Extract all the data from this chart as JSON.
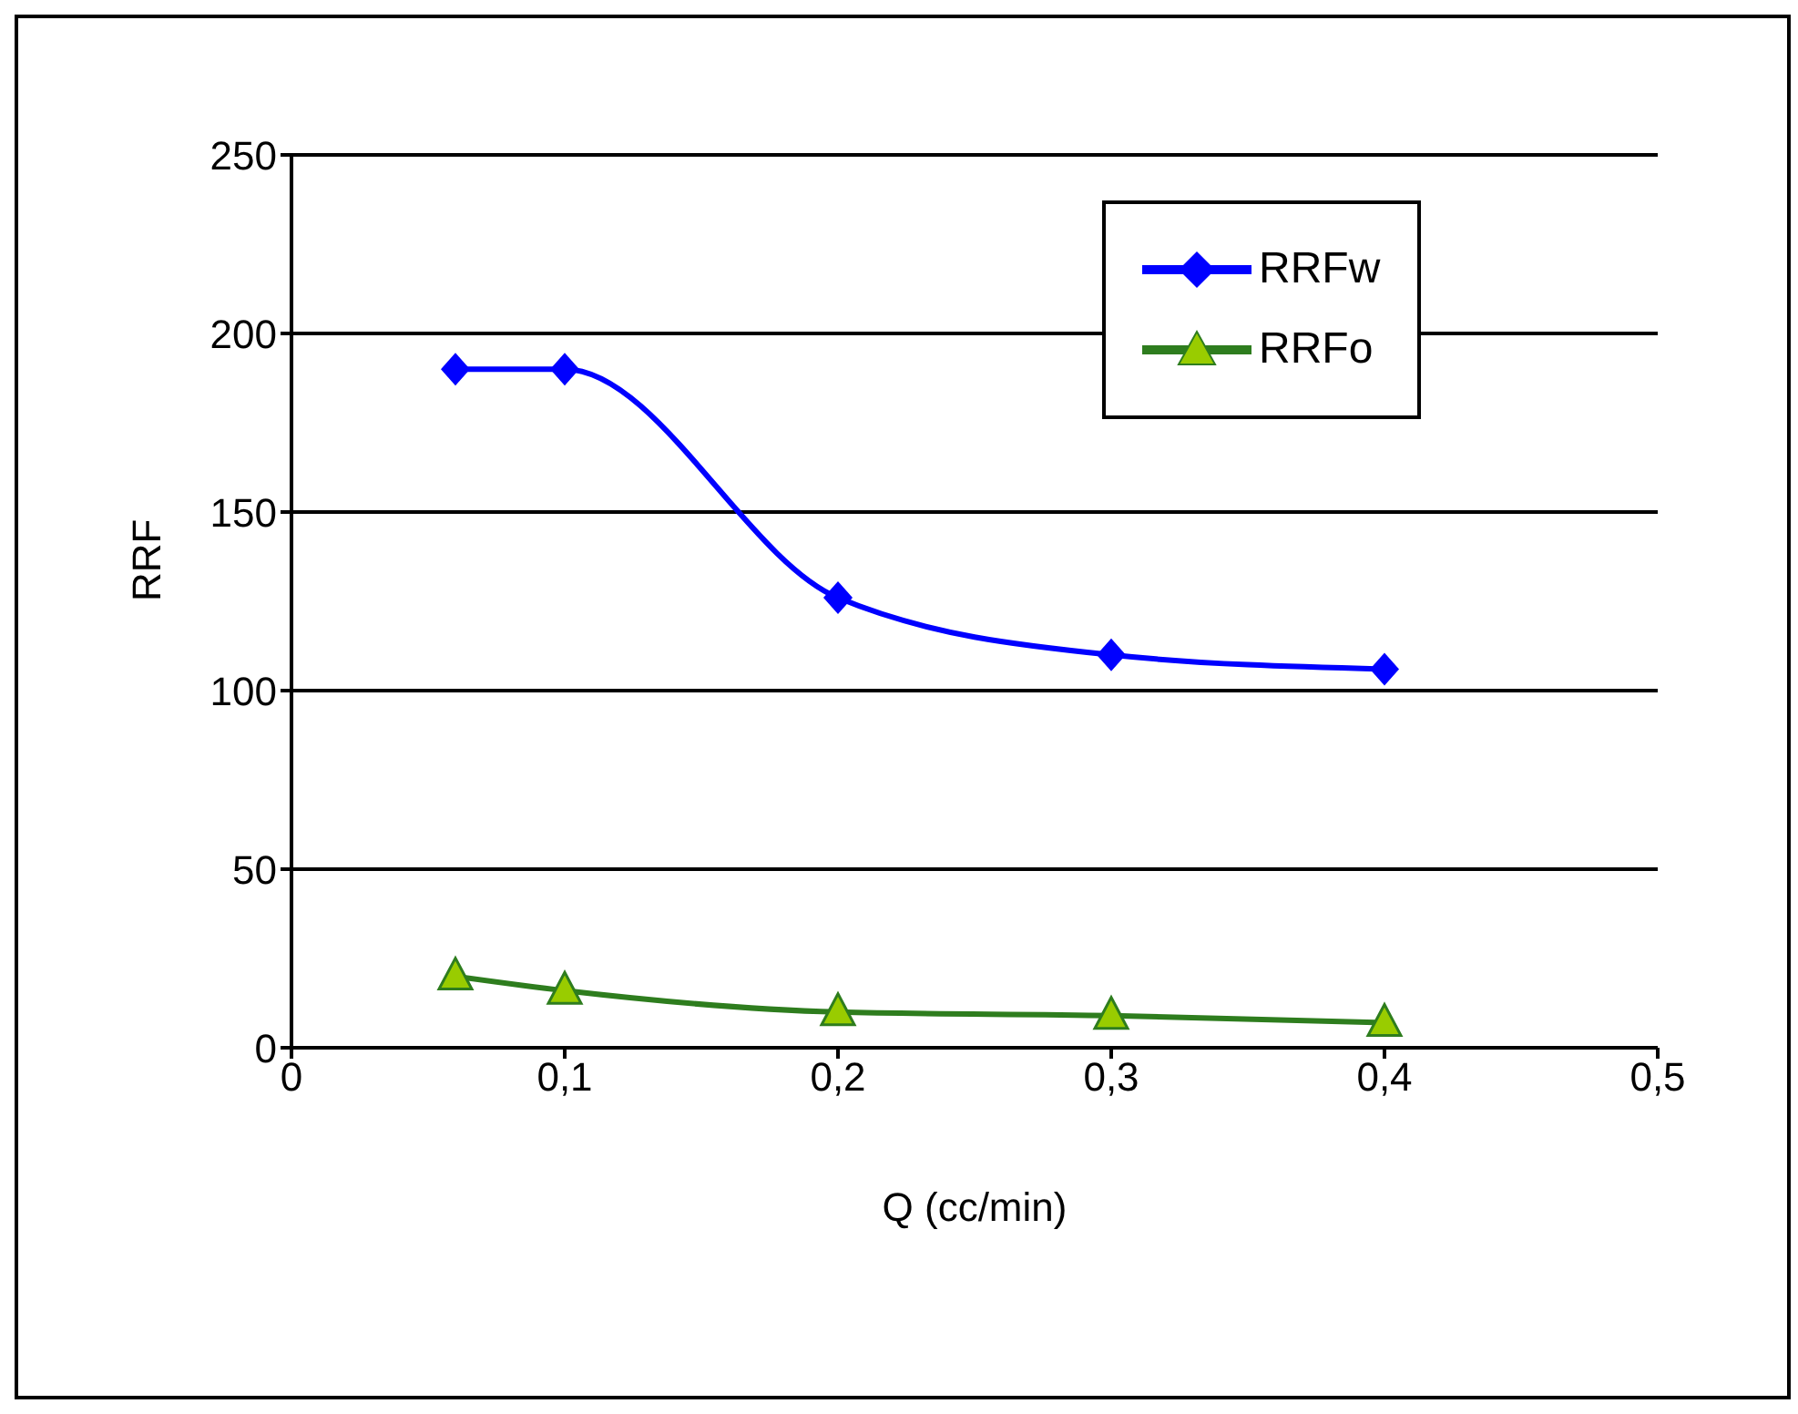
{
  "chart_data": {
    "type": "line",
    "xlabel": "Q (cc/min)",
    "ylabel": "RRF",
    "x": [
      0.06,
      0.1,
      0.2,
      0.3,
      0.4
    ],
    "series": [
      {
        "name": "RRFw",
        "color": "#0000ff",
        "values": [
          190,
          190,
          126,
          110,
          106
        ],
        "marker": "diamond"
      },
      {
        "name": "RRFo",
        "color": "#2e7d1e",
        "values": [
          20,
          16,
          10,
          9,
          7
        ],
        "marker": "triangle"
      }
    ],
    "xlim": [
      0,
      0.5
    ],
    "xticks": [
      0,
      {
        "value": 0.1,
        "label": "0,1"
      },
      {
        "value": 0.2,
        "label": "0,2"
      },
      {
        "value": 0.3,
        "label": "0,3"
      },
      {
        "value": 0.4,
        "label": "0,4"
      },
      {
        "value": 0.5,
        "label": "0,5"
      }
    ],
    "ylim": [
      0,
      250
    ],
    "yticks": [
      0,
      50,
      100,
      150,
      200,
      250
    ],
    "grid": "y",
    "legend": "top right",
    "line_style": "solid"
  }
}
